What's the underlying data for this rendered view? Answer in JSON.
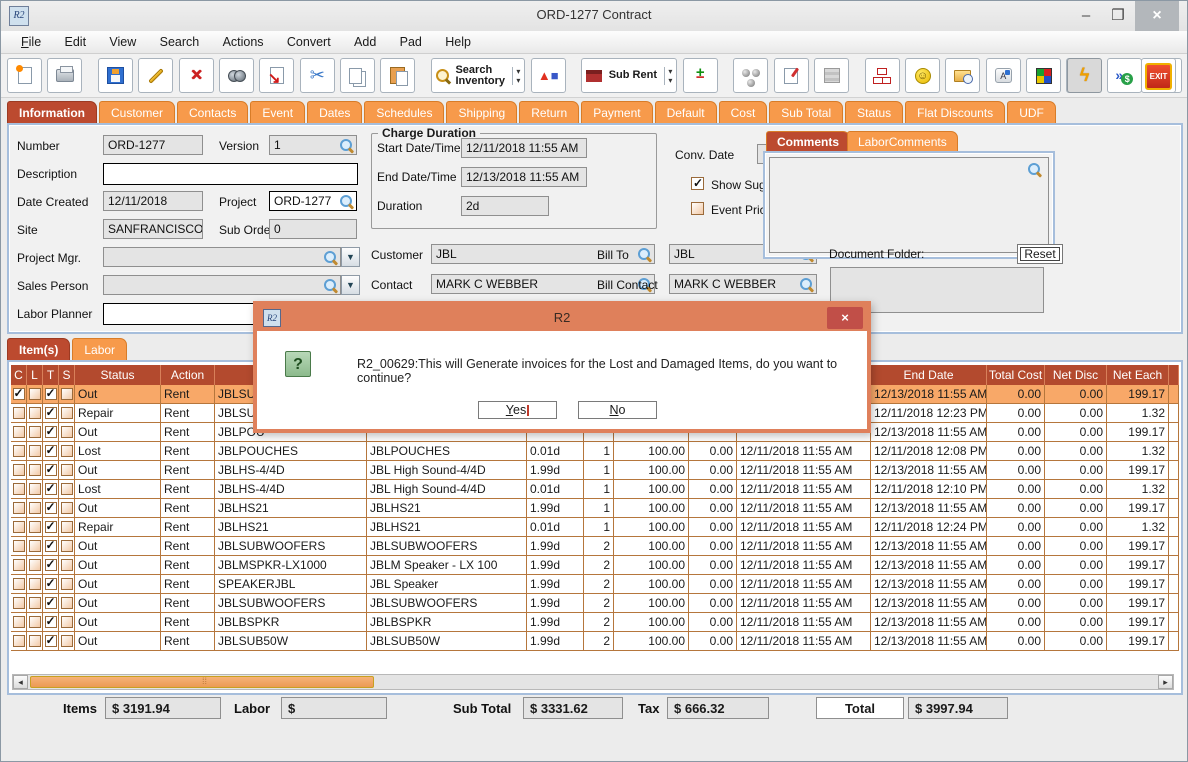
{
  "window": {
    "title": "ORD-1277 Contract",
    "minimize": "–",
    "maximize": "❒",
    "close": "×"
  },
  "menu": {
    "items": [
      "File",
      "Edit",
      "View",
      "Search",
      "Actions",
      "Convert",
      "Add",
      "Pad",
      "Help"
    ]
  },
  "toolbar": {
    "search_inventory_label_1": "Search",
    "search_inventory_label_2": "Inventory",
    "sub_rent_label": "Sub Rent",
    "exit_label": "EXIT"
  },
  "tabs": {
    "active": "Information",
    "items": [
      "Information",
      "Customer",
      "Contacts",
      "Event",
      "Dates",
      "Schedules",
      "Shipping",
      "Return",
      "Payment",
      "Default",
      "Cost",
      "Sub Total",
      "Status",
      "Flat Discounts",
      "UDF"
    ]
  },
  "form": {
    "number_label": "Number",
    "number_value": "ORD-1277",
    "version_label": "Version",
    "version_value": "1",
    "description_label": "Description",
    "description_value": "",
    "date_created_label": "Date Created",
    "date_created_value": "12/11/2018",
    "project_label": "Project",
    "project_value": "ORD-1277",
    "site_label": "Site",
    "site_value": "SANFRANCISCO",
    "sub_orders_label": "Sub Orders",
    "sub_orders_value": "0",
    "project_mgr_label": "Project Mgr.",
    "project_mgr_value": "",
    "sales_person_label": "Sales Person",
    "sales_person_value": "",
    "labor_planner_label": "Labor Planner",
    "labor_planner_value": "",
    "charge_duration": {
      "legend": "Charge Duration",
      "start_label": "Start Date/Time",
      "start_value": "12/11/2018 11:55 AM",
      "end_label": "End Date/Time",
      "end_value": "12/13/2018 11:55 AM",
      "duration_label": "Duration",
      "duration_value": "2d"
    },
    "conv_date_label": "Conv. Date",
    "conv_date_value": "",
    "show_suggestions_label": "Show Suggestions",
    "show_suggestions_checked": true,
    "event_pricing_label": "Event Pricing",
    "event_pricing_checked": false,
    "customer_label": "Customer",
    "customer_value": "JBL",
    "contact_label": "Contact",
    "contact_value": "MARK C WEBBER",
    "bill_to_label": "Bill To",
    "bill_to_value": "JBL",
    "bill_contact_label": "Bill Contact",
    "bill_contact_value": "MARK C WEBBER",
    "comments_tab": "Comments",
    "labor_comments_tab": "LaborComments",
    "comments_value": "",
    "document_folder_label": "Document Folder:",
    "reset_label": "Reset"
  },
  "item_tabs": {
    "active": "Item(s)",
    "items": [
      "Item(s)",
      "Labor"
    ]
  },
  "table": {
    "headers": [
      "C",
      "L",
      "T",
      "S",
      "Status",
      "Action",
      "",
      "",
      "",
      "",
      "",
      "",
      "",
      "End Date",
      "Total Cost",
      "Net Disc",
      "Net Each",
      ""
    ],
    "rows": [
      {
        "selected": true,
        "c": true,
        "l": false,
        "t": true,
        "s": false,
        "status": "Out",
        "action": "Rent",
        "code": "JBLSUB",
        "desc": "",
        "charge": "",
        "qty": "",
        "price": "",
        "disc": "",
        "start": "",
        "end": "12/13/2018 11:55 AM",
        "total_cost": "0.00",
        "net_disc": "0.00",
        "net_each": "199.17"
      },
      {
        "selected": false,
        "c": false,
        "l": false,
        "t": true,
        "s": false,
        "status": "Repair",
        "action": "Rent",
        "code": "JBLSUB",
        "desc": "",
        "charge": "",
        "qty": "",
        "price": "",
        "disc": "",
        "start": "",
        "end": "12/11/2018 12:23 PM",
        "total_cost": "0.00",
        "net_disc": "0.00",
        "net_each": "1.32"
      },
      {
        "selected": false,
        "c": false,
        "l": false,
        "t": true,
        "s": false,
        "status": "Out",
        "action": "Rent",
        "code": "JBLPOU",
        "desc": "",
        "charge": "",
        "qty": "",
        "price": "",
        "disc": "",
        "start": "",
        "end": "12/13/2018 11:55 AM",
        "total_cost": "0.00",
        "net_disc": "0.00",
        "net_each": "199.17"
      },
      {
        "selected": false,
        "c": false,
        "l": false,
        "t": true,
        "s": false,
        "status": "Lost",
        "action": "Rent",
        "code": "JBLPOUCHES",
        "desc": "JBLPOUCHES",
        "charge": "0.01d",
        "qty": "1",
        "price": "100.00",
        "disc": "0.00",
        "start": "12/11/2018 11:55 AM",
        "end": "12/11/2018 12:08 PM",
        "total_cost": "0.00",
        "net_disc": "0.00",
        "net_each": "1.32"
      },
      {
        "selected": false,
        "c": false,
        "l": false,
        "t": true,
        "s": false,
        "status": "Out",
        "action": "Rent",
        "code": "JBLHS-4/4D",
        "desc": "JBL High Sound-4/4D",
        "charge": "1.99d",
        "qty": "1",
        "price": "100.00",
        "disc": "0.00",
        "start": "12/11/2018 11:55 AM",
        "end": "12/13/2018 11:55 AM",
        "total_cost": "0.00",
        "net_disc": "0.00",
        "net_each": "199.17"
      },
      {
        "selected": false,
        "c": false,
        "l": false,
        "t": true,
        "s": false,
        "status": "Lost",
        "action": "Rent",
        "code": "JBLHS-4/4D",
        "desc": "JBL High Sound-4/4D",
        "charge": "0.01d",
        "qty": "1",
        "price": "100.00",
        "disc": "0.00",
        "start": "12/11/2018 11:55 AM",
        "end": "12/11/2018 12:10 PM",
        "total_cost": "0.00",
        "net_disc": "0.00",
        "net_each": "1.32"
      },
      {
        "selected": false,
        "c": false,
        "l": false,
        "t": true,
        "s": false,
        "status": "Out",
        "action": "Rent",
        "code": "JBLHS21",
        "desc": "JBLHS21",
        "charge": "1.99d",
        "qty": "1",
        "price": "100.00",
        "disc": "0.00",
        "start": "12/11/2018 11:55 AM",
        "end": "12/13/2018 11:55 AM",
        "total_cost": "0.00",
        "net_disc": "0.00",
        "net_each": "199.17"
      },
      {
        "selected": false,
        "c": false,
        "l": false,
        "t": true,
        "s": false,
        "status": "Repair",
        "action": "Rent",
        "code": "JBLHS21",
        "desc": "JBLHS21",
        "charge": "0.01d",
        "qty": "1",
        "price": "100.00",
        "disc": "0.00",
        "start": "12/11/2018 11:55 AM",
        "end": "12/11/2018 12:24 PM",
        "total_cost": "0.00",
        "net_disc": "0.00",
        "net_each": "1.32"
      },
      {
        "selected": false,
        "c": false,
        "l": false,
        "t": true,
        "s": false,
        "status": "Out",
        "action": "Rent",
        "code": "JBLSUBWOOFERS",
        "desc": "JBLSUBWOOFERS",
        "charge": "1.99d",
        "qty": "2",
        "price": "100.00",
        "disc": "0.00",
        "start": "12/11/2018 11:55 AM",
        "end": "12/13/2018 11:55 AM",
        "total_cost": "0.00",
        "net_disc": "0.00",
        "net_each": "199.17"
      },
      {
        "selected": false,
        "c": false,
        "l": false,
        "t": true,
        "s": false,
        "status": "Out",
        "action": "Rent",
        "code": "JBLMSPKR-LX1000",
        "desc": "JBLM Speaker - LX 100",
        "charge": "1.99d",
        "qty": "2",
        "price": "100.00",
        "disc": "0.00",
        "start": "12/11/2018 11:55 AM",
        "end": "12/13/2018 11:55 AM",
        "total_cost": "0.00",
        "net_disc": "0.00",
        "net_each": "199.17"
      },
      {
        "selected": false,
        "c": false,
        "l": false,
        "t": true,
        "s": false,
        "status": "Out",
        "action": "Rent",
        "code": "SPEAKERJBL",
        "desc": "JBL Speaker",
        "charge": "1.99d",
        "qty": "2",
        "price": "100.00",
        "disc": "0.00",
        "start": "12/11/2018 11:55 AM",
        "end": "12/13/2018 11:55 AM",
        "total_cost": "0.00",
        "net_disc": "0.00",
        "net_each": "199.17"
      },
      {
        "selected": false,
        "c": false,
        "l": false,
        "t": true,
        "s": false,
        "status": "Out",
        "action": "Rent",
        "code": "JBLSUBWOOFERS",
        "desc": "JBLSUBWOOFERS",
        "charge": "1.99d",
        "qty": "2",
        "price": "100.00",
        "disc": "0.00",
        "start": "12/11/2018 11:55 AM",
        "end": "12/13/2018 11:55 AM",
        "total_cost": "0.00",
        "net_disc": "0.00",
        "net_each": "199.17"
      },
      {
        "selected": false,
        "c": false,
        "l": false,
        "t": true,
        "s": false,
        "status": "Out",
        "action": "Rent",
        "code": "JBLBSPKR",
        "desc": "JBLBSPKR",
        "charge": "1.99d",
        "qty": "2",
        "price": "100.00",
        "disc": "0.00",
        "start": "12/11/2018 11:55 AM",
        "end": "12/13/2018 11:55 AM",
        "total_cost": "0.00",
        "net_disc": "0.00",
        "net_each": "199.17"
      },
      {
        "selected": false,
        "c": false,
        "l": false,
        "t": true,
        "s": false,
        "status": "Out",
        "action": "Rent",
        "code": "JBLSUB50W",
        "desc": "JBLSUB50W",
        "charge": "1.99d",
        "qty": "2",
        "price": "100.00",
        "disc": "0.00",
        "start": "12/11/2018 11:55 AM",
        "end": "12/13/2018 11:55 AM",
        "total_cost": "0.00",
        "net_disc": "0.00",
        "net_each": "199.17"
      }
    ]
  },
  "totals": {
    "items_label": "Items",
    "items_value": "$ 3191.94",
    "labor_label": "Labor",
    "labor_value": "$",
    "sub_total_label": "Sub Total",
    "sub_total_value": "$ 3331.62",
    "tax_label": "Tax",
    "tax_value": "$ 666.32",
    "total_label": "Total",
    "total_value": "$ 3997.94"
  },
  "dialog": {
    "title": "R2",
    "message": "R2_00629:This will Generate invoices for the Lost and Damaged Items, do you want to continue?",
    "yes_label": "Yes",
    "no_label": "No",
    "close": "×"
  }
}
